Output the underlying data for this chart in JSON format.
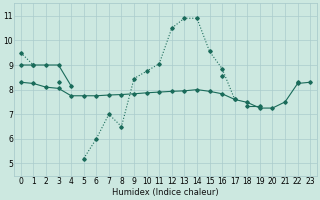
{
  "xlabel": "Humidex (Indice chaleur)",
  "bg_color": "#cce8e0",
  "grid_color": "#aacccc",
  "line_color": "#1a6b5a",
  "x_values": [
    0,
    1,
    2,
    3,
    4,
    5,
    6,
    7,
    8,
    9,
    10,
    11,
    12,
    13,
    14,
    15,
    16,
    17,
    18,
    19,
    20,
    21,
    22,
    23
  ],
  "series1": [
    9.5,
    9.0,
    null,
    8.3,
    null,
    5.2,
    6.0,
    7.0,
    6.5,
    8.45,
    8.75,
    9.05,
    10.5,
    10.9,
    10.9,
    9.55,
    8.85,
    7.6,
    null,
    null,
    null,
    null,
    8.3,
    null
  ],
  "series2": [
    8.3,
    8.25,
    8.1,
    8.05,
    7.75,
    7.75,
    7.75,
    7.78,
    7.8,
    7.83,
    7.87,
    7.9,
    7.93,
    7.95,
    8.0,
    7.93,
    7.83,
    7.6,
    7.48,
    7.25,
    7.25,
    7.5,
    8.25,
    8.3
  ],
  "series3": [
    9.0,
    9.0,
    9.0,
    9.0,
    8.15,
    null,
    null,
    null,
    null,
    null,
    null,
    null,
    null,
    null,
    null,
    null,
    8.55,
    null,
    7.35,
    7.35,
    null,
    null,
    null,
    null
  ],
  "ylim": [
    4.5,
    11.5
  ],
  "xlim": [
    -0.5,
    23.5
  ],
  "yticks": [
    5,
    6,
    7,
    8,
    9,
    10,
    11
  ],
  "xticks": [
    0,
    1,
    2,
    3,
    4,
    5,
    6,
    7,
    8,
    9,
    10,
    11,
    12,
    13,
    14,
    15,
    16,
    17,
    18,
    19,
    20,
    21,
    22,
    23
  ],
  "tick_fontsize": 5.5,
  "xlabel_fontsize": 6.0
}
